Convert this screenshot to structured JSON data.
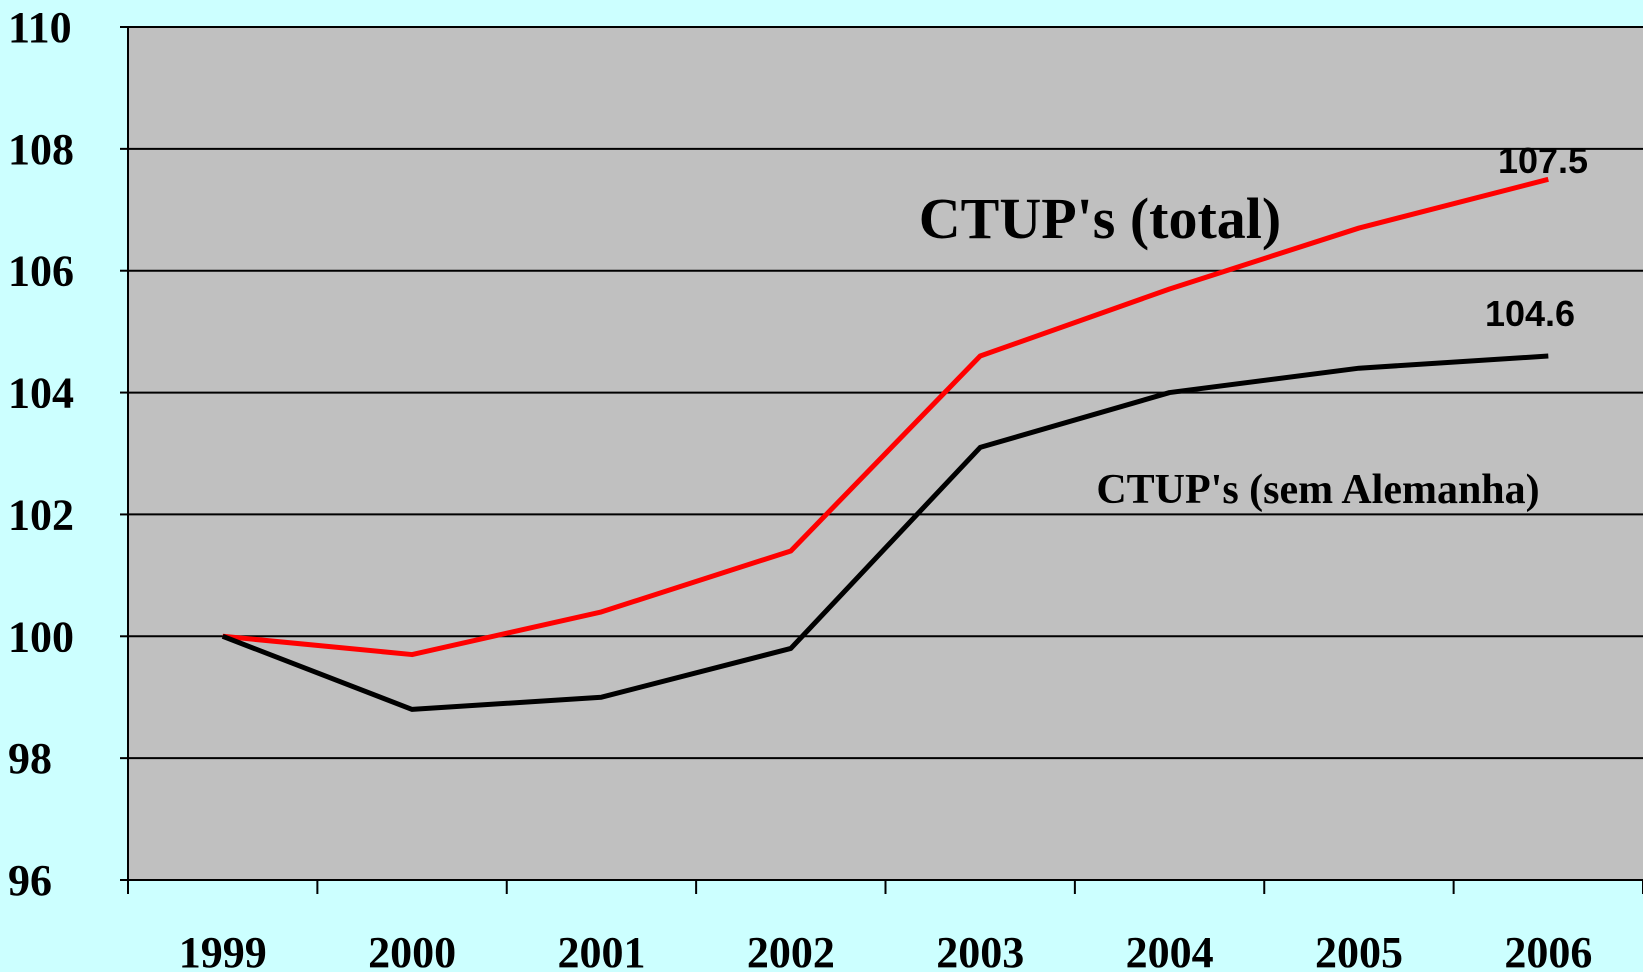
{
  "chart_data": {
    "type": "line",
    "categories": [
      "1999",
      "2000",
      "2001",
      "2002",
      "2003",
      "2004",
      "2005",
      "2006"
    ],
    "series": [
      {
        "name": "CTUP's (total)",
        "color": "#ff0000",
        "values": [
          100,
          99.7,
          100.4,
          101.4,
          104.6,
          105.7,
          106.7,
          107.5
        ]
      },
      {
        "name": "CTUP's (sem Alemanha)",
        "color": "#000000",
        "values": [
          100,
          98.8,
          99.0,
          99.8,
          103.1,
          104.0,
          104.4,
          104.6
        ]
      }
    ],
    "ylim": [
      96,
      110
    ],
    "yticks": [
      96,
      98,
      100,
      102,
      104,
      106,
      108,
      110
    ],
    "grid": true
  }
}
